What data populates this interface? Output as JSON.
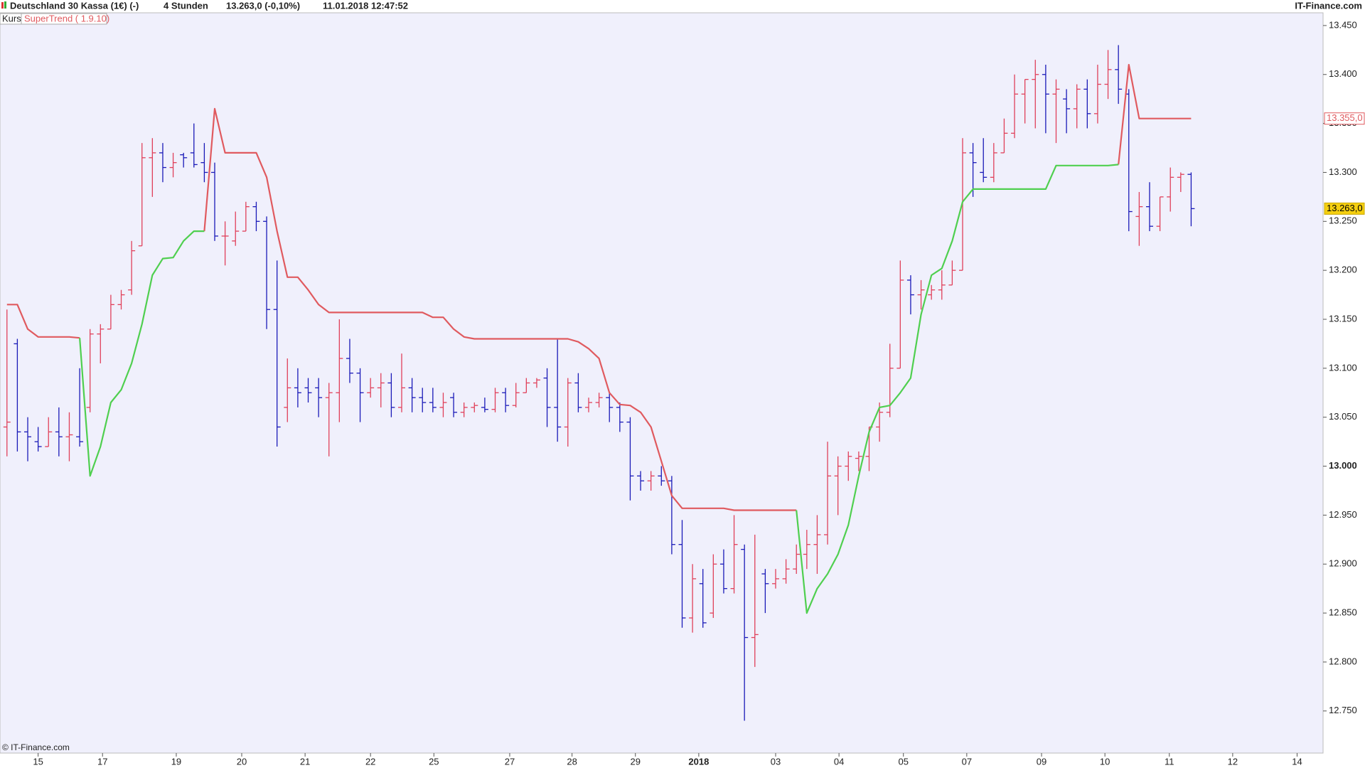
{
  "header": {
    "instrument": "Deutschland 30 Kassa (1€) (-)",
    "period": "4 Stunden",
    "quote": "13.263,0 (-0,10%)",
    "timestamp": "11.01.2018 12:47:52",
    "brand": "IT-Finance.com",
    "copyright": "© IT-Finance.com"
  },
  "chart_data": {
    "type": "ohlc",
    "legend": [
      "Kurs",
      "SuperTrend ( 1.9.10)"
    ],
    "up_color": "#e0405a",
    "down_color": "#1a1ab8",
    "xlim": [
      -0.67,
      126.7
    ],
    "xticks": [
      {
        "value": 3.0,
        "label": "15"
      },
      {
        "value": 9.2,
        "label": "17"
      },
      {
        "value": 16.3,
        "label": "19"
      },
      {
        "value": 22.6,
        "label": "20"
      },
      {
        "value": 28.7,
        "label": "21"
      },
      {
        "value": 35.0,
        "label": "22"
      },
      {
        "value": 41.1,
        "label": "25"
      },
      {
        "value": 48.4,
        "label": "27"
      },
      {
        "value": 54.4,
        "label": "28"
      },
      {
        "value": 60.5,
        "label": "29"
      },
      {
        "value": 66.6,
        "label": "2018"
      },
      {
        "value": 74.0,
        "label": "03"
      },
      {
        "value": 80.1,
        "label": "04"
      },
      {
        "value": 86.3,
        "label": "05"
      },
      {
        "value": 92.4,
        "label": "07"
      },
      {
        "value": 99.6,
        "label": "09"
      },
      {
        "value": 105.7,
        "label": "10"
      },
      {
        "value": 111.9,
        "label": "11"
      },
      {
        "value": 118.0,
        "label": "12"
      },
      {
        "value": 124.2,
        "label": "14"
      }
    ],
    "ylim": [
      12707,
      13463
    ],
    "yticks": [
      {
        "value": 12750,
        "label": "12.750"
      },
      {
        "value": 12800,
        "label": "12.800"
      },
      {
        "value": 12850,
        "label": "12.850"
      },
      {
        "value": 12900,
        "label": "12.900"
      },
      {
        "value": 12950,
        "label": "12.950"
      },
      {
        "value": 13000,
        "label": "13.000"
      },
      {
        "value": 13050,
        "label": "13.050"
      },
      {
        "value": 13100,
        "label": "13.100"
      },
      {
        "value": 13150,
        "label": "13.150"
      },
      {
        "value": 13200,
        "label": "13.200"
      },
      {
        "value": 13250,
        "label": "13.250"
      },
      {
        "value": 13300,
        "label": "13.300"
      },
      {
        "value": 13350,
        "label": "13.350"
      },
      {
        "value": 13400,
        "label": "13.400"
      },
      {
        "value": 13450,
        "label": "13.450"
      }
    ],
    "bars": [
      [
        13040,
        13160,
        13010,
        13045
      ],
      [
        13125,
        13130,
        13015,
        13035
      ],
      [
        13035,
        13050,
        13005,
        13030
      ],
      [
        13025,
        13040,
        13015,
        13020
      ],
      [
        13020,
        13050,
        13020,
        13035
      ],
      [
        13035,
        13060,
        13010,
        13030
      ],
      [
        13030,
        13055,
        13005,
        13032
      ],
      [
        13030,
        13100,
        13020,
        13025
      ],
      [
        13060,
        13140,
        13055,
        13135
      ],
      [
        13135,
        13145,
        13105,
        13140
      ],
      [
        13140,
        13175,
        13140,
        13165
      ],
      [
        13165,
        13180,
        13160,
        13175
      ],
      [
        13180,
        13230,
        13175,
        13220
      ],
      [
        13225,
        13330,
        13225,
        13315
      ],
      [
        13315,
        13335,
        13275,
        13320
      ],
      [
        13320,
        13330,
        13290,
        13305
      ],
      [
        13305,
        13320,
        13295,
        13310
      ],
      [
        13318,
        13320,
        13305,
        13315
      ],
      [
        13320,
        13350,
        13305,
        13308
      ],
      [
        13310,
        13330,
        13290,
        13300
      ],
      [
        13300,
        13310,
        13230,
        13235
      ],
      [
        13235,
        13250,
        13205,
        13235
      ],
      [
        13230,
        13260,
        13225,
        13240
      ],
      [
        13240,
        13270,
        13240,
        13265
      ],
      [
        13265,
        13270,
        13240,
        13250
      ],
      [
        13250,
        13255,
        13140,
        13160
      ],
      [
        13160,
        13210,
        13020,
        13040
      ],
      [
        13060,
        13110,
        13045,
        13080
      ],
      [
        13080,
        13100,
        13060,
        13075
      ],
      [
        13080,
        13090,
        13065,
        13075
      ],
      [
        13080,
        13090,
        13050,
        13070
      ],
      [
        13070,
        13085,
        13010,
        13075
      ],
      [
        13075,
        13150,
        13045,
        13110
      ],
      [
        13110,
        13130,
        13085,
        13095
      ],
      [
        13095,
        13100,
        13045,
        13075
      ],
      [
        13075,
        13090,
        13070,
        13080
      ],
      [
        13080,
        13095,
        13060,
        13085
      ],
      [
        13085,
        13095,
        13050,
        13060
      ],
      [
        13060,
        13115,
        13055,
        13080
      ],
      [
        13080,
        13090,
        13055,
        13070
      ],
      [
        13070,
        13080,
        13055,
        13065
      ],
      [
        13065,
        13080,
        13055,
        13060
      ],
      [
        13060,
        13075,
        13050,
        13065
      ],
      [
        13070,
        13075,
        13050,
        13055
      ],
      [
        13055,
        13065,
        13050,
        13060
      ],
      [
        13060,
        13065,
        13055,
        13062
      ],
      [
        13060,
        13070,
        13055,
        13058
      ],
      [
        13058,
        13080,
        13055,
        13075
      ],
      [
        13075,
        13080,
        13055,
        13062
      ],
      [
        13062,
        13085,
        13060,
        13075
      ],
      [
        13075,
        13090,
        13075,
        13085
      ],
      [
        13085,
        13090,
        13080,
        13088
      ],
      [
        13090,
        13100,
        13040,
        13060
      ],
      [
        13060,
        13130,
        13025,
        13040
      ],
      [
        13040,
        13090,
        13020,
        13085
      ],
      [
        13085,
        13095,
        13055,
        13060
      ],
      [
        13060,
        13070,
        13055,
        13065
      ],
      [
        13065,
        13075,
        13060,
        13070
      ],
      [
        13070,
        13075,
        13045,
        13060
      ],
      [
        13060,
        13065,
        13035,
        13045
      ],
      [
        13045,
        13050,
        12965,
        12990
      ],
      [
        12990,
        12995,
        12975,
        12985
      ],
      [
        12985,
        12995,
        12975,
        12990
      ],
      [
        12990,
        13000,
        12980,
        12985
      ],
      [
        12985,
        12990,
        12910,
        12920
      ],
      [
        12920,
        12945,
        12835,
        12845
      ],
      [
        12845,
        12900,
        12830,
        12885
      ],
      [
        12880,
        12895,
        12835,
        12840
      ],
      [
        12850,
        12910,
        12845,
        12900
      ],
      [
        12900,
        12915,
        12870,
        12875
      ],
      [
        12875,
        12950,
        12870,
        12920
      ],
      [
        12915,
        12920,
        12740,
        12825
      ],
      [
        12825,
        12930,
        12795,
        12828
      ],
      [
        12890,
        12895,
        12850,
        12880
      ],
      [
        12880,
        12895,
        12875,
        12885
      ],
      [
        12885,
        12905,
        12880,
        12895
      ],
      [
        12895,
        12920,
        12890,
        12910
      ],
      [
        12910,
        12935,
        12895,
        12920
      ],
      [
        12920,
        12950,
        12890,
        12930
      ],
      [
        12930,
        13025,
        12920,
        12990
      ],
      [
        12990,
        13010,
        12950,
        13000
      ],
      [
        13000,
        13015,
        12985,
        13010
      ],
      [
        13008,
        13015,
        12995,
        13010
      ],
      [
        13010,
        13040,
        12995,
        13040
      ],
      [
        13040,
        13065,
        13025,
        13055
      ],
      [
        13055,
        13125,
        13050,
        13100
      ],
      [
        13100,
        13210,
        13100,
        13190
      ],
      [
        13190,
        13195,
        13155,
        13175
      ],
      [
        13175,
        13190,
        13160,
        13180
      ],
      [
        13175,
        13185,
        13170,
        13180
      ],
      [
        13180,
        13200,
        13170,
        13185
      ],
      [
        13185,
        13210,
        13185,
        13200
      ],
      [
        13200,
        13335,
        13200,
        13320
      ],
      [
        13320,
        13330,
        13275,
        13310
      ],
      [
        13300,
        13335,
        13290,
        13295
      ],
      [
        13295,
        13330,
        13290,
        13320
      ],
      [
        13320,
        13355,
        13320,
        13340
      ],
      [
        13340,
        13400,
        13335,
        13380
      ],
      [
        13380,
        13395,
        13350,
        13395
      ],
      [
        13395,
        13415,
        13345,
        13400
      ],
      [
        13400,
        13410,
        13340,
        13380
      ],
      [
        13380,
        13395,
        13330,
        13385
      ],
      [
        13375,
        13385,
        13340,
        13365
      ],
      [
        13365,
        13390,
        13345,
        13385
      ],
      [
        13385,
        13395,
        13345,
        13360
      ],
      [
        13360,
        13410,
        13350,
        13390
      ],
      [
        13390,
        13425,
        13375,
        13405
      ],
      [
        13405,
        13430,
        13370,
        13385
      ],
      [
        13380,
        13385,
        13240,
        13260
      ],
      [
        13255,
        13280,
        13225,
        13265
      ],
      [
        13265,
        13290,
        13240,
        13245
      ],
      [
        13245,
        13275,
        13240,
        13275
      ],
      [
        13275,
        13305,
        13260,
        13295
      ],
      [
        13295,
        13300,
        13280,
        13298
      ],
      [
        13298,
        13300,
        13245,
        13263
      ]
    ],
    "lines": [
      {
        "color": "#e05a5f",
        "values": [
          13165,
          13165,
          13140,
          13132,
          13132,
          13132,
          13132,
          13131,
          null,
          null,
          null,
          null,
          null,
          null,
          null,
          null,
          null,
          null,
          null,
          13240,
          13365,
          13320,
          13320,
          13320,
          13320,
          13295,
          13240,
          13193,
          13193,
          13180,
          13165,
          13157,
          13157,
          13157,
          13157,
          13157,
          13157,
          13157,
          13157,
          13157,
          13157,
          13152,
          13152,
          13140,
          13132,
          13130,
          13130,
          13130,
          13130,
          13130,
          13130,
          13130,
          13130,
          13130,
          13130,
          13127,
          13120,
          13110,
          13075,
          13063,
          13062,
          13055,
          13040,
          13005,
          12970,
          12957,
          12957,
          12957,
          12957,
          12957,
          12955,
          12955,
          12955,
          12955,
          12955,
          12955,
          12955,
          null,
          null,
          null,
          null,
          null,
          null,
          null,
          null,
          null,
          null,
          null,
          null,
          null,
          null,
          null,
          null,
          null,
          null,
          null,
          null,
          null,
          null,
          null,
          null,
          null,
          null,
          null,
          null,
          null,
          null,
          13308,
          13410,
          13355,
          13355,
          13355,
          13355,
          13355,
          13355
        ]
      },
      {
        "color": "#4fcf4f",
        "values": [
          null,
          null,
          null,
          null,
          null,
          null,
          null,
          13131,
          12990,
          13020,
          13065,
          13078,
          13105,
          13145,
          13195,
          13212,
          13213,
          13230,
          13240,
          13240,
          null,
          null,
          null,
          null,
          null,
          null,
          null,
          null,
          null,
          null,
          null,
          null,
          null,
          null,
          null,
          null,
          null,
          null,
          null,
          null,
          null,
          null,
          null,
          null,
          null,
          null,
          null,
          null,
          null,
          null,
          null,
          null,
          null,
          null,
          null,
          null,
          null,
          null,
          null,
          null,
          null,
          null,
          null,
          null,
          null,
          null,
          null,
          null,
          null,
          null,
          null,
          null,
          null,
          null,
          null,
          null,
          12955,
          12850,
          12875,
          12890,
          12910,
          12940,
          12990,
          13035,
          13060,
          13062,
          13075,
          13090,
          13155,
          13195,
          13202,
          13230,
          13270,
          13283,
          13283,
          13283,
          13283,
          13283,
          13283,
          13283,
          13283,
          13307,
          13307,
          13307,
          13307,
          13307,
          13307,
          13308,
          null,
          null,
          null,
          null,
          null,
          null,
          null
        ]
      }
    ],
    "supertrend_label": {
      "value": 13355,
      "label": "13.355,0"
    },
    "last_price": {
      "value": 13263,
      "label": "13.263,0"
    }
  }
}
